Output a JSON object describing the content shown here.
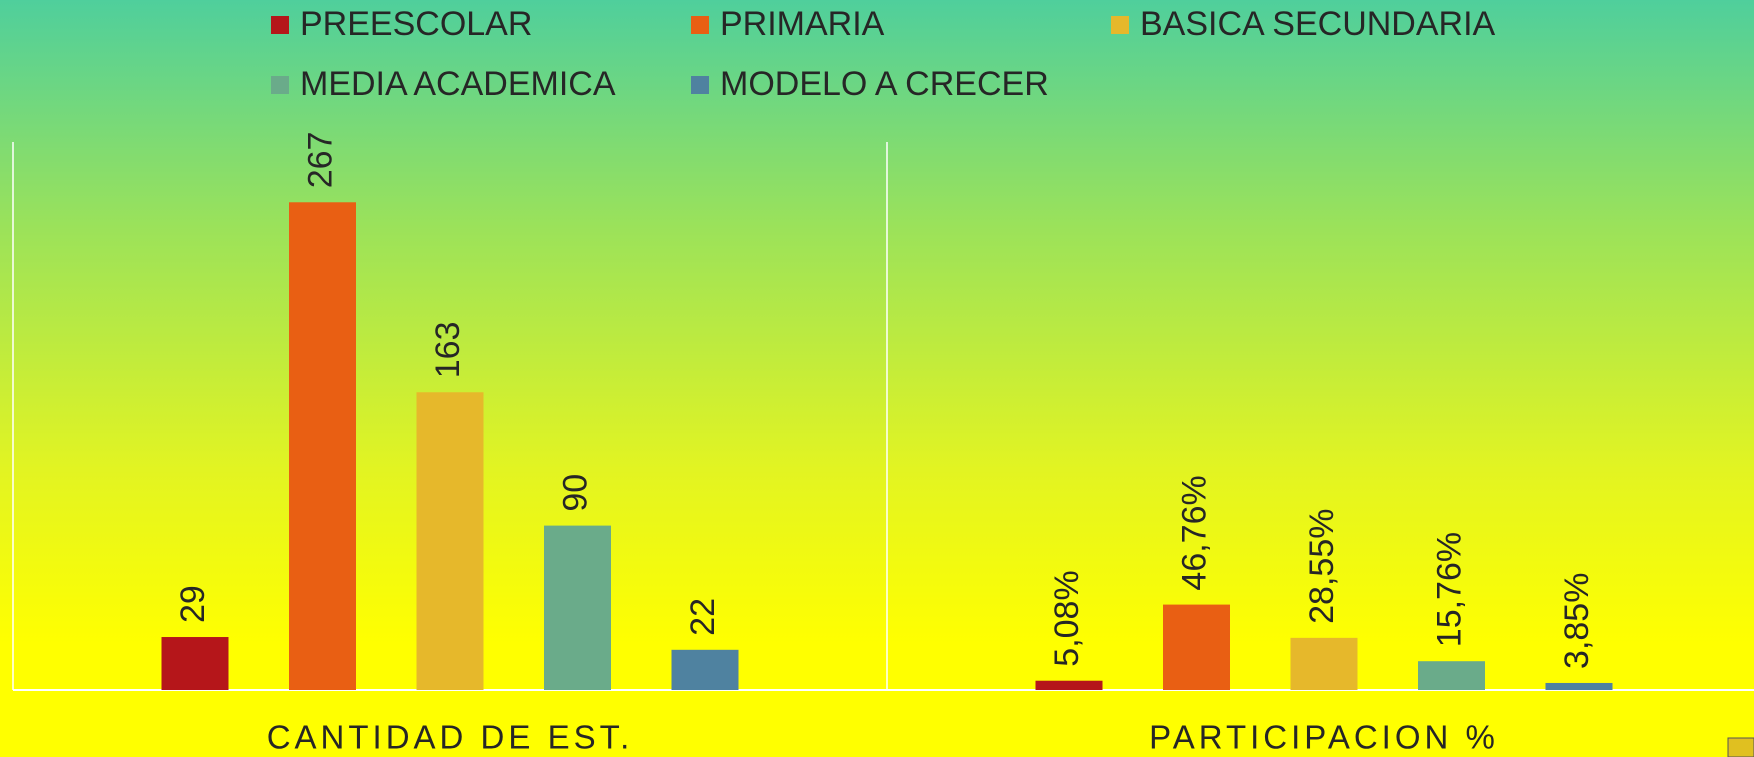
{
  "chart_data": {
    "type": "bar",
    "categories": [
      "CANTIDAD DE EST.",
      "PARTICIPACION %"
    ],
    "series": [
      {
        "name": "PREESCOLAR",
        "color": "#b5161a",
        "values": [
          29,
          5.08
        ],
        "value_labels": [
          "29",
          "5,08%"
        ]
      },
      {
        "name": "PRIMARIA",
        "color": "#e95f13",
        "values": [
          267,
          46.76
        ],
        "value_labels": [
          "267",
          "46,76%"
        ]
      },
      {
        "name": "BASICA SECUNDARIA",
        "color": "#e6b82b",
        "values": [
          163,
          28.55
        ],
        "value_labels": [
          "163",
          "28,55%"
        ]
      },
      {
        "name": "MEDIA ACADEMICA",
        "color": "#6aab8a",
        "values": [
          90,
          15.76
        ],
        "value_labels": [
          "90",
          "15,76%"
        ]
      },
      {
        "name": "MODELO A CRECER",
        "color": "#4f82a0",
        "values": [
          22,
          3.85
        ],
        "value_labels": [
          "22",
          "3,85%"
        ]
      }
    ],
    "ylim": [
      0,
      300
    ],
    "legend": "top"
  }
}
